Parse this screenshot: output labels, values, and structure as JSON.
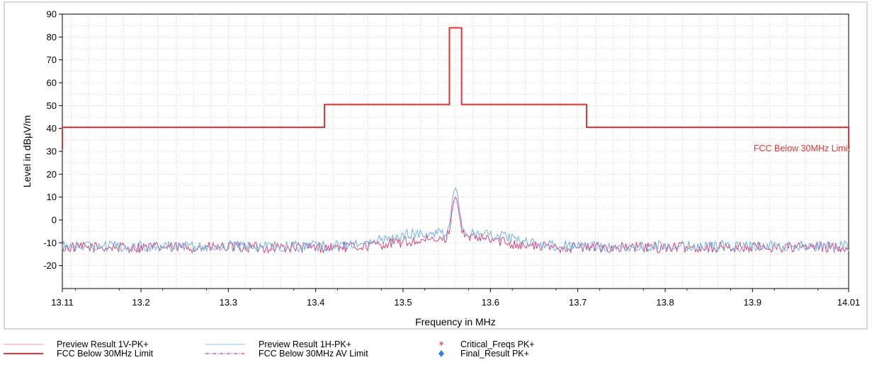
{
  "chart_data": {
    "type": "line",
    "xlabel": "Frequency in MHz",
    "ylabel": "Level in dBµV/m",
    "xlim": [
      13.11,
      14.01
    ],
    "ylim": [
      -30,
      90
    ],
    "x_ticks": [
      "13.11",
      "13.2",
      "13.3",
      "13.4",
      "13.5",
      "13.6",
      "13.7",
      "13.8",
      "13.9",
      "14.01"
    ],
    "x_tick_values": [
      13.11,
      13.2,
      13.3,
      13.4,
      13.5,
      13.6,
      13.7,
      13.8,
      13.9,
      14.01
    ],
    "y_ticks": [
      "90",
      "80",
      "70",
      "60",
      "50",
      "40",
      "30",
      "20",
      "10",
      "0",
      "-10",
      "-20"
    ],
    "y_tick_values": [
      90,
      80,
      70,
      60,
      50,
      40,
      30,
      20,
      10,
      0,
      -10,
      -20
    ],
    "grid": true,
    "limit_annotation": "FCC Below 30MHz Limit",
    "limit_line": {
      "name": "FCC Below 30MHz Limit",
      "color": "#ee3333",
      "points": [
        [
          13.11,
          31
        ],
        [
          13.11,
          40.5
        ],
        [
          13.41,
          40.5
        ],
        [
          13.41,
          50.5
        ],
        [
          13.553,
          50.5
        ],
        [
          13.553,
          84
        ],
        [
          13.567,
          84
        ],
        [
          13.567,
          50.5
        ],
        [
          13.71,
          50.5
        ],
        [
          13.71,
          40.5
        ],
        [
          14.01,
          40.5
        ],
        [
          14.01,
          31
        ]
      ]
    },
    "series": [
      {
        "name": "Preview Result 1V-PK+",
        "color": "#e0407a",
        "baseline": -12,
        "noise": 1.2,
        "bumps": [
          {
            "x": 13.505,
            "width": 0.045,
            "height": 2
          },
          {
            "x": 13.58,
            "width": 0.05,
            "height": 4
          }
        ],
        "peak": {
          "x": 13.56,
          "value": 10,
          "width": 0.006
        }
      },
      {
        "name": "Preview Result 1H-PK+",
        "color": "#6fb0e4",
        "baseline": -11.5,
        "noise": 1.2,
        "bumps": [
          {
            "x": 13.515,
            "width": 0.05,
            "height": 5
          },
          {
            "x": 13.59,
            "width": 0.05,
            "height": 5
          }
        ],
        "peak": {
          "x": 13.56,
          "value": 14,
          "width": 0.006
        }
      }
    ]
  },
  "legend": {
    "items": [
      {
        "label": "Preview Result 1V-PK+",
        "marker": "line",
        "color": "#f4a6c4"
      },
      {
        "label": "FCC Below 30MHz Limit",
        "marker": "line",
        "color": "#ee3333"
      },
      {
        "label": "Preview Result 1H-PK+",
        "marker": "line",
        "color": "#a9d0ee"
      },
      {
        "label": "FCC Below 30MHz AV Limit",
        "marker": "dashdot",
        "color": "#cc33cc"
      },
      {
        "label": "Critical_Freqs PK+",
        "marker": "asterisk",
        "color": "#e02020"
      },
      {
        "label": "Final_Result PK+",
        "marker": "diamond",
        "color": "#3388dd"
      }
    ]
  }
}
